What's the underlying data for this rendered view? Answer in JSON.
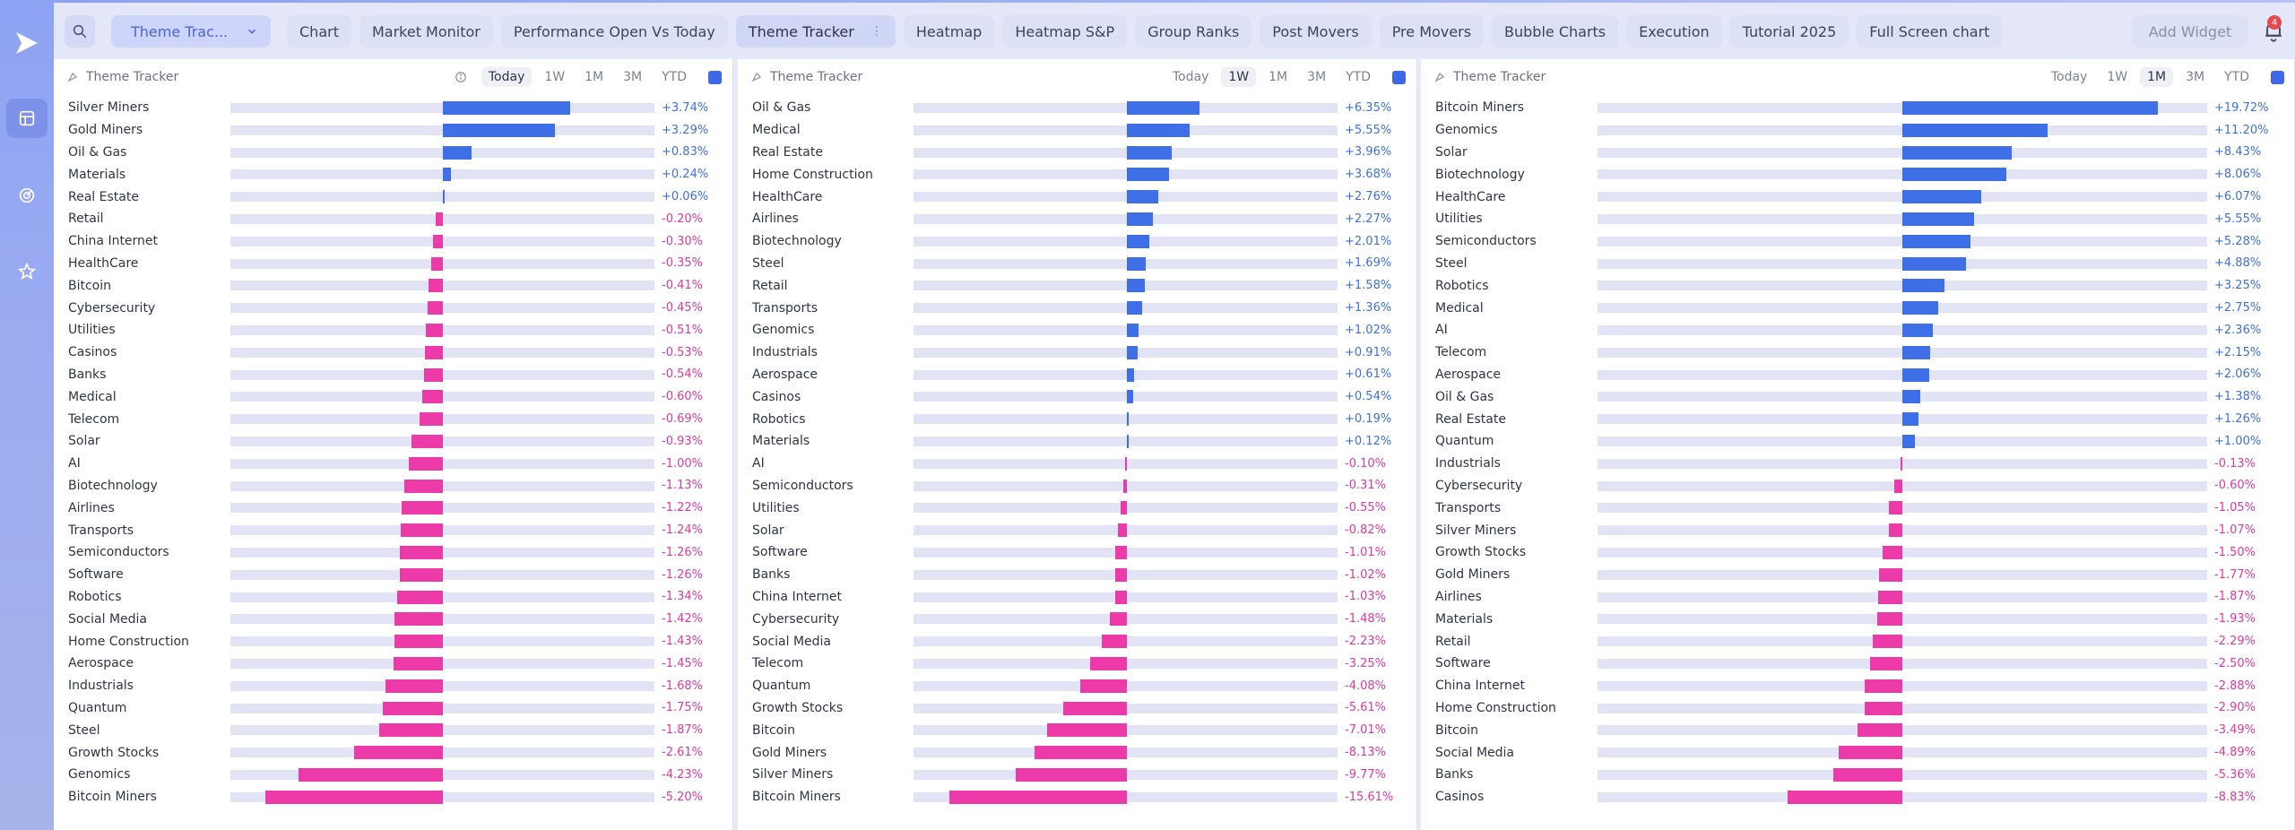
{
  "toolbar": {
    "dashboard_select": "Theme Trac...",
    "tabs": [
      {
        "label": "Chart"
      },
      {
        "label": "Market Monitor"
      },
      {
        "label": "Performance Open Vs Today"
      },
      {
        "label": "Theme Tracker",
        "active": true
      },
      {
        "label": "Heatmap"
      },
      {
        "label": "Heatmap S&P"
      },
      {
        "label": "Group Ranks"
      },
      {
        "label": "Post Movers"
      },
      {
        "label": "Pre Movers"
      },
      {
        "label": "Bubble Charts"
      },
      {
        "label": "Execution"
      },
      {
        "label": "Tutorial 2025"
      },
      {
        "label": "Full Screen chart"
      }
    ],
    "add_widget": "Add Widget",
    "notification_count": "4"
  },
  "colors": {
    "positive": "#3e6fe6",
    "negative": "#ec3ba9",
    "accent": "#4b63e6"
  },
  "panels": [
    {
      "title": "Theme Tracker",
      "periods": [
        "Today",
        "1W",
        "1M",
        "3M",
        "YTD"
      ],
      "active_period": "Today",
      "scale_max": 5.2,
      "rows": [
        {
          "name": "Silver Miners",
          "value": 3.74,
          "label": "+3.74%"
        },
        {
          "name": "Gold Miners",
          "value": 3.29,
          "label": "+3.29%"
        },
        {
          "name": "Oil & Gas",
          "value": 0.83,
          "label": "+0.83%"
        },
        {
          "name": "Materials",
          "value": 0.24,
          "label": "+0.24%"
        },
        {
          "name": "Real Estate",
          "value": 0.06,
          "label": "+0.06%"
        },
        {
          "name": "Retail",
          "value": -0.2,
          "label": "-0.20%"
        },
        {
          "name": "China Internet",
          "value": -0.3,
          "label": "-0.30%"
        },
        {
          "name": "HealthCare",
          "value": -0.35,
          "label": "-0.35%"
        },
        {
          "name": "Bitcoin",
          "value": -0.41,
          "label": "-0.41%"
        },
        {
          "name": "Cybersecurity",
          "value": -0.45,
          "label": "-0.45%"
        },
        {
          "name": "Utilities",
          "value": -0.51,
          "label": "-0.51%"
        },
        {
          "name": "Casinos",
          "value": -0.53,
          "label": "-0.53%"
        },
        {
          "name": "Banks",
          "value": -0.54,
          "label": "-0.54%"
        },
        {
          "name": "Medical",
          "value": -0.6,
          "label": "-0.60%"
        },
        {
          "name": "Telecom",
          "value": -0.69,
          "label": "-0.69%"
        },
        {
          "name": "Solar",
          "value": -0.93,
          "label": "-0.93%"
        },
        {
          "name": "AI",
          "value": -1.0,
          "label": "-1.00%"
        },
        {
          "name": "Biotechnology",
          "value": -1.13,
          "label": "-1.13%"
        },
        {
          "name": "Airlines",
          "value": -1.22,
          "label": "-1.22%"
        },
        {
          "name": "Transports",
          "value": -1.24,
          "label": "-1.24%"
        },
        {
          "name": "Semiconductors",
          "value": -1.26,
          "label": "-1.26%"
        },
        {
          "name": "Software",
          "value": -1.26,
          "label": "-1.26%"
        },
        {
          "name": "Robotics",
          "value": -1.34,
          "label": "-1.34%"
        },
        {
          "name": "Social Media",
          "value": -1.42,
          "label": "-1.42%"
        },
        {
          "name": "Home Construction",
          "value": -1.43,
          "label": "-1.43%"
        },
        {
          "name": "Aerospace",
          "value": -1.45,
          "label": "-1.45%"
        },
        {
          "name": "Industrials",
          "value": -1.68,
          "label": "-1.68%"
        },
        {
          "name": "Quantum",
          "value": -1.75,
          "label": "-1.75%"
        },
        {
          "name": "Steel",
          "value": -1.87,
          "label": "-1.87%"
        },
        {
          "name": "Growth Stocks",
          "value": -2.61,
          "label": "-2.61%"
        },
        {
          "name": "Genomics",
          "value": -4.23,
          "label": "-4.23%"
        },
        {
          "name": "Bitcoin Miners",
          "value": -5.2,
          "label": "-5.20%"
        }
      ]
    },
    {
      "title": "Theme Tracker",
      "periods": [
        "Today",
        "1W",
        "1M",
        "3M",
        "YTD"
      ],
      "active_period": "1W",
      "scale_max": 15.61,
      "rows": [
        {
          "name": "Oil & Gas",
          "value": 6.35,
          "label": "+6.35%"
        },
        {
          "name": "Medical",
          "value": 5.55,
          "label": "+5.55%"
        },
        {
          "name": "Real Estate",
          "value": 3.96,
          "label": "+3.96%"
        },
        {
          "name": "Home Construction",
          "value": 3.68,
          "label": "+3.68%"
        },
        {
          "name": "HealthCare",
          "value": 2.76,
          "label": "+2.76%"
        },
        {
          "name": "Airlines",
          "value": 2.27,
          "label": "+2.27%"
        },
        {
          "name": "Biotechnology",
          "value": 2.01,
          "label": "+2.01%"
        },
        {
          "name": "Steel",
          "value": 1.69,
          "label": "+1.69%"
        },
        {
          "name": "Retail",
          "value": 1.58,
          "label": "+1.58%"
        },
        {
          "name": "Transports",
          "value": 1.36,
          "label": "+1.36%"
        },
        {
          "name": "Genomics",
          "value": 1.02,
          "label": "+1.02%"
        },
        {
          "name": "Industrials",
          "value": 0.91,
          "label": "+0.91%"
        },
        {
          "name": "Aerospace",
          "value": 0.61,
          "label": "+0.61%"
        },
        {
          "name": "Casinos",
          "value": 0.54,
          "label": "+0.54%"
        },
        {
          "name": "Robotics",
          "value": 0.19,
          "label": "+0.19%"
        },
        {
          "name": "Materials",
          "value": 0.12,
          "label": "+0.12%"
        },
        {
          "name": "AI",
          "value": -0.1,
          "label": "-0.10%"
        },
        {
          "name": "Semiconductors",
          "value": -0.31,
          "label": "-0.31%"
        },
        {
          "name": "Utilities",
          "value": -0.55,
          "label": "-0.55%"
        },
        {
          "name": "Solar",
          "value": -0.82,
          "label": "-0.82%"
        },
        {
          "name": "Software",
          "value": -1.01,
          "label": "-1.01%"
        },
        {
          "name": "Banks",
          "value": -1.02,
          "label": "-1.02%"
        },
        {
          "name": "China Internet",
          "value": -1.03,
          "label": "-1.03%"
        },
        {
          "name": "Cybersecurity",
          "value": -1.48,
          "label": "-1.48%"
        },
        {
          "name": "Social Media",
          "value": -2.23,
          "label": "-2.23%"
        },
        {
          "name": "Telecom",
          "value": -3.25,
          "label": "-3.25%"
        },
        {
          "name": "Quantum",
          "value": -4.08,
          "label": "-4.08%"
        },
        {
          "name": "Growth Stocks",
          "value": -5.61,
          "label": "-5.61%"
        },
        {
          "name": "Bitcoin",
          "value": -7.01,
          "label": "-7.01%"
        },
        {
          "name": "Gold Miners",
          "value": -8.13,
          "label": "-8.13%"
        },
        {
          "name": "Silver Miners",
          "value": -9.77,
          "label": "-9.77%"
        },
        {
          "name": "Bitcoin Miners",
          "value": -15.61,
          "label": "-15.61%"
        }
      ]
    },
    {
      "title": "Theme Tracker",
      "periods": [
        "Today",
        "1W",
        "1M",
        "3M",
        "YTD"
      ],
      "active_period": "1M",
      "scale_max": 19.72,
      "rows": [
        {
          "name": "Bitcoin Miners",
          "value": 19.72,
          "label": "+19.72%"
        },
        {
          "name": "Genomics",
          "value": 11.2,
          "label": "+11.20%"
        },
        {
          "name": "Solar",
          "value": 8.43,
          "label": "+8.43%"
        },
        {
          "name": "Biotechnology",
          "value": 8.06,
          "label": "+8.06%"
        },
        {
          "name": "HealthCare",
          "value": 6.07,
          "label": "+6.07%"
        },
        {
          "name": "Utilities",
          "value": 5.55,
          "label": "+5.55%"
        },
        {
          "name": "Semiconductors",
          "value": 5.28,
          "label": "+5.28%"
        },
        {
          "name": "Steel",
          "value": 4.88,
          "label": "+4.88%"
        },
        {
          "name": "Robotics",
          "value": 3.25,
          "label": "+3.25%"
        },
        {
          "name": "Medical",
          "value": 2.75,
          "label": "+2.75%"
        },
        {
          "name": "AI",
          "value": 2.36,
          "label": "+2.36%"
        },
        {
          "name": "Telecom",
          "value": 2.15,
          "label": "+2.15%"
        },
        {
          "name": "Aerospace",
          "value": 2.06,
          "label": "+2.06%"
        },
        {
          "name": "Oil & Gas",
          "value": 1.38,
          "label": "+1.38%"
        },
        {
          "name": "Real Estate",
          "value": 1.26,
          "label": "+1.26%"
        },
        {
          "name": "Quantum",
          "value": 1.0,
          "label": "+1.00%"
        },
        {
          "name": "Industrials",
          "value": -0.13,
          "label": "-0.13%"
        },
        {
          "name": "Cybersecurity",
          "value": -0.6,
          "label": "-0.60%"
        },
        {
          "name": "Transports",
          "value": -1.05,
          "label": "-1.05%"
        },
        {
          "name": "Silver Miners",
          "value": -1.07,
          "label": "-1.07%"
        },
        {
          "name": "Growth Stocks",
          "value": -1.5,
          "label": "-1.50%"
        },
        {
          "name": "Gold Miners",
          "value": -1.77,
          "label": "-1.77%"
        },
        {
          "name": "Airlines",
          "value": -1.87,
          "label": "-1.87%"
        },
        {
          "name": "Materials",
          "value": -1.93,
          "label": "-1.93%"
        },
        {
          "name": "Retail",
          "value": -2.29,
          "label": "-2.29%"
        },
        {
          "name": "Software",
          "value": -2.5,
          "label": "-2.50%"
        },
        {
          "name": "China Internet",
          "value": -2.88,
          "label": "-2.88%"
        },
        {
          "name": "Home Construction",
          "value": -2.9,
          "label": "-2.90%"
        },
        {
          "name": "Bitcoin",
          "value": -3.49,
          "label": "-3.49%"
        },
        {
          "name": "Social Media",
          "value": -4.89,
          "label": "-4.89%"
        },
        {
          "name": "Banks",
          "value": -5.36,
          "label": "-5.36%"
        },
        {
          "name": "Casinos",
          "value": -8.83,
          "label": "-8.83%"
        }
      ]
    }
  ]
}
